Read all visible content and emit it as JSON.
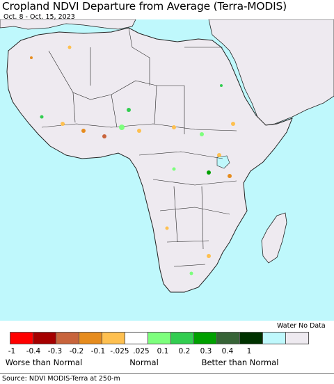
{
  "header": {
    "title": "Cropland NDVI Departure from Average (Terra-MODIS)",
    "date_range": "Oct. 8 - Oct. 15, 2023"
  },
  "map": {
    "ocean_color": "#bff8fc",
    "land_color": "#eeeaf0",
    "border_color": "#222222"
  },
  "legend": {
    "water_label": "Water",
    "nodata_label": "No Data",
    "swatches": [
      {
        "color": "#ff0000"
      },
      {
        "color": "#a50000"
      },
      {
        "color": "#c8643c"
      },
      {
        "color": "#e68c1e"
      },
      {
        "color": "#fec050"
      },
      {
        "color": "#ffffff"
      },
      {
        "color": "#7dff7d"
      },
      {
        "color": "#32cd50"
      },
      {
        "color": "#00a000"
      },
      {
        "color": "#376437"
      },
      {
        "color": "#003200"
      },
      {
        "color": "#bff8fc"
      },
      {
        "color": "#eeeaf0"
      }
    ],
    "ticks": [
      "-1",
      "-0.4",
      "-0.3",
      "-0.2",
      "-0.1",
      "-.025",
      ".025",
      "0.1",
      "0.2",
      "0.3",
      "0.4",
      "1"
    ],
    "groups": [
      "Worse than Normal",
      "Normal",
      "Better than Normal"
    ]
  },
  "footer": {
    "source": "Source: NDVI MODIS-Terra at 250-m"
  }
}
